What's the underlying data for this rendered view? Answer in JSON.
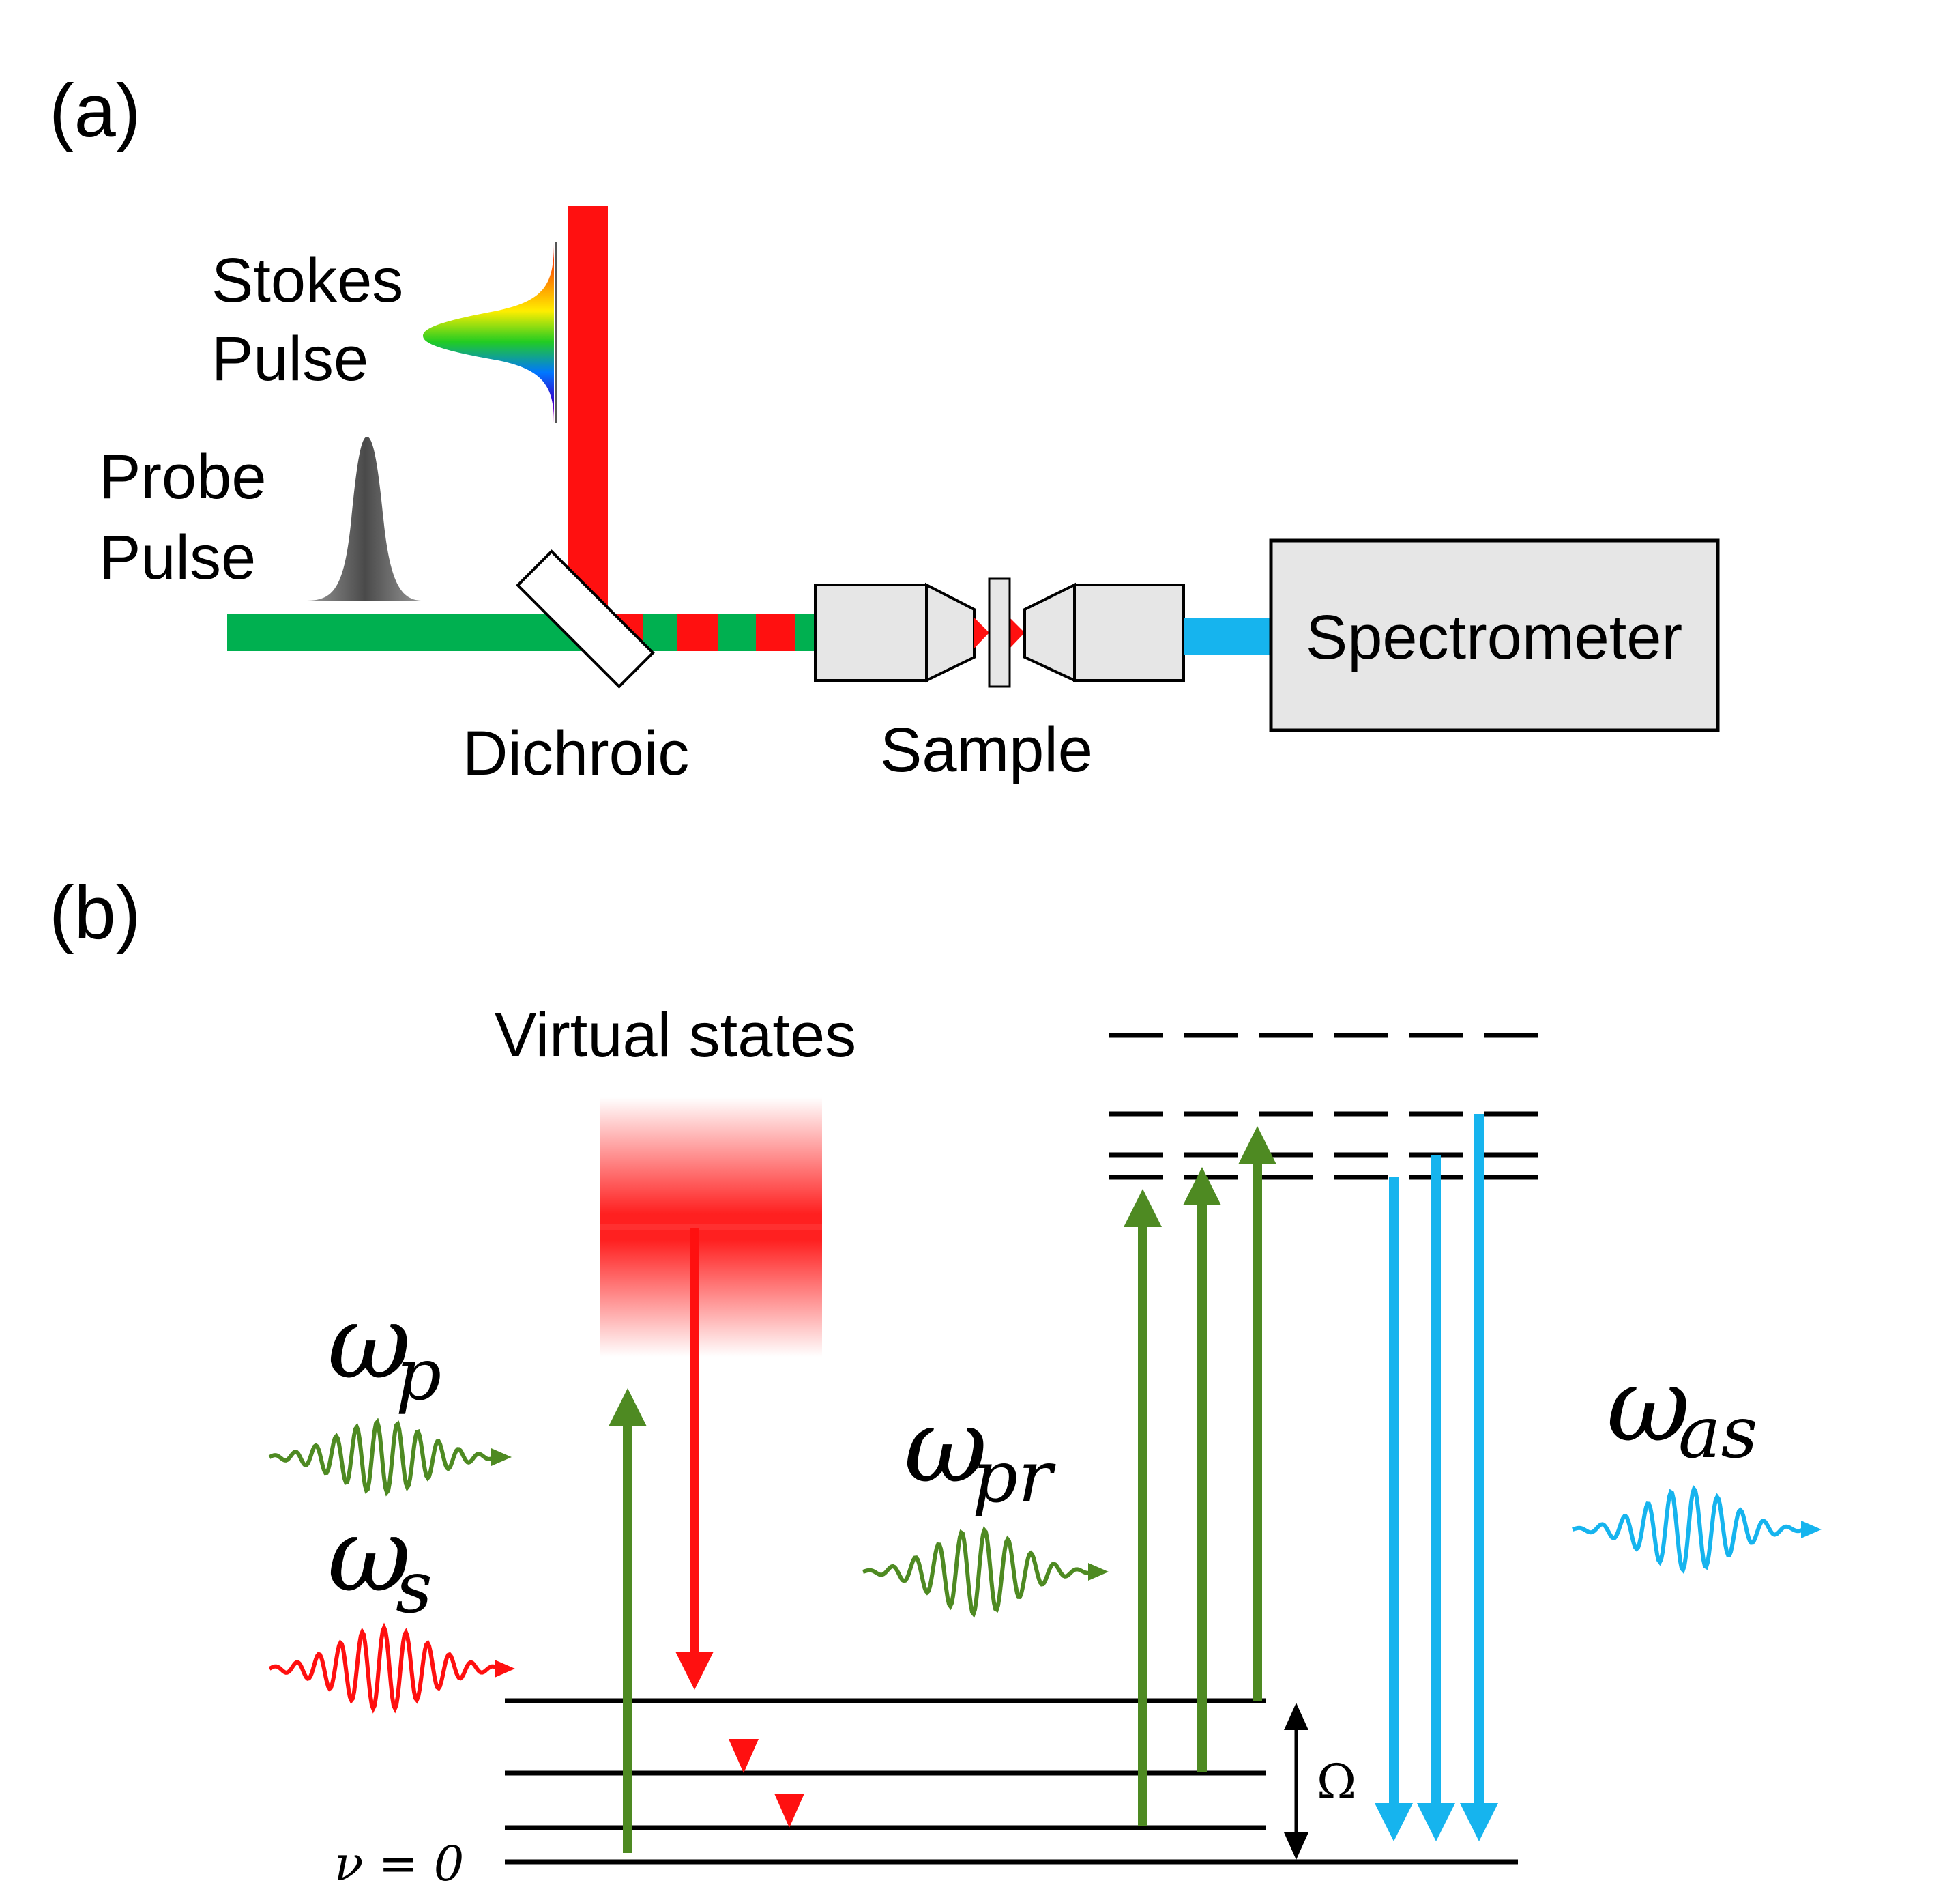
{
  "panel_a": {
    "label": "(a)",
    "stokes_line1": "Stokes",
    "stokes_line2": "Pulse",
    "probe_line1": "Probe",
    "probe_line2": "Pulse",
    "dichroic": "Dichroic",
    "sample": "Sample",
    "spectrometer": "Spectrometer"
  },
  "panel_b": {
    "label": "(b)",
    "virtual_states": "Virtual states",
    "omega": "ω",
    "sub_p": "p",
    "sub_s": "s",
    "sub_pr": "pr",
    "sub_as": "as",
    "big_omega": "Ω",
    "ground_state": "ν = 0"
  },
  "colors": {
    "stokes_red": "#ff1010",
    "pump_green": "#00b050",
    "arrow_green": "#4e8a22",
    "anti_stokes_blue": "#16b4ee",
    "gray_fill": "#e6e6e6"
  }
}
